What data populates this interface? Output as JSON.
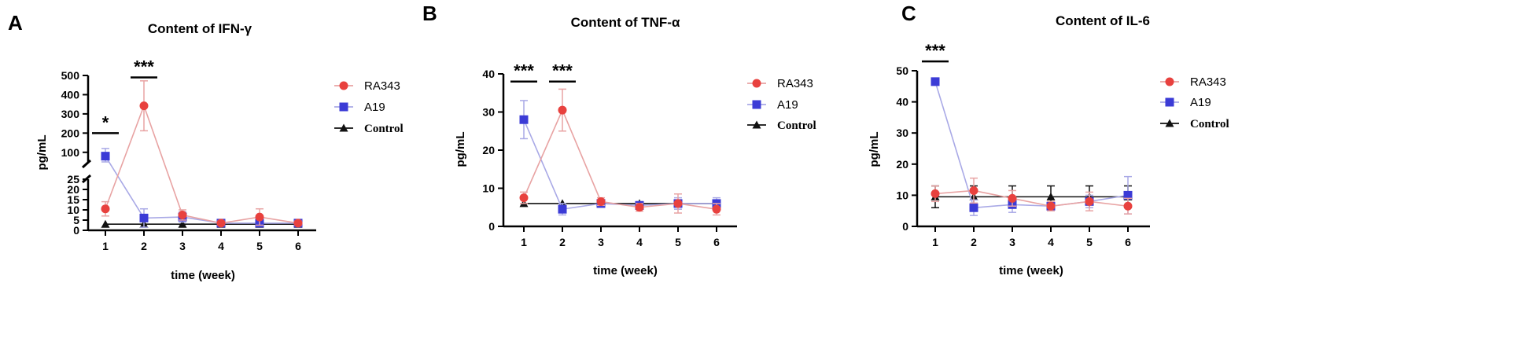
{
  "chart_data": [
    {
      "panel_letter": "A",
      "type": "line",
      "title": "Content of IFN-γ",
      "xlabel": "time (week)",
      "ylabel": "pg/mL",
      "x": [
        1,
        2,
        3,
        4,
        5,
        6
      ],
      "xticks": [
        "1",
        "2",
        "3",
        "4",
        "5",
        "6"
      ],
      "broken_axis": true,
      "ylim_lower": [
        0,
        25
      ],
      "ylim_upper": [
        50,
        500
      ],
      "yticks_lower": [
        "0",
        "5",
        "10",
        "15",
        "20",
        "25"
      ],
      "yticks_upper": [
        "100",
        "200",
        "300",
        "400",
        "500"
      ],
      "series": [
        {
          "name": "RA343",
          "marker": "circle",
          "color": "#e8413e",
          "line_color": "#e8a3a3",
          "values": [
            10.5,
            342,
            7.5,
            3.5,
            6.5,
            3.5
          ],
          "errors": [
            3.5,
            130,
            2.5,
            1,
            4,
            1
          ]
        },
        {
          "name": "A19",
          "marker": "square",
          "color": "#3b3bd6",
          "line_color": "#a9a9e6",
          "values": [
            80,
            6,
            6.5,
            3.5,
            3.5,
            3.5
          ],
          "errors": [
            40,
            4.5,
            2.5,
            1,
            1,
            1
          ]
        },
        {
          "name": "Control",
          "marker": "triangle",
          "color": "#111111",
          "line_color": "#111111",
          "values": [
            3,
            3,
            3,
            3,
            3,
            3
          ],
          "errors": [
            0,
            0,
            0,
            0,
            0,
            0
          ]
        }
      ],
      "significance": [
        {
          "label": "*",
          "x": 1,
          "y": 200
        },
        {
          "label": "***",
          "x": 2,
          "y": 490
        }
      ]
    },
    {
      "panel_letter": "B",
      "type": "line",
      "title": "Content of TNF-α",
      "xlabel": "time (week)",
      "ylabel": "pg/mL",
      "x": [
        1,
        2,
        3,
        4,
        5,
        6
      ],
      "xticks": [
        "1",
        "2",
        "3",
        "4",
        "5",
        "6"
      ],
      "ylim": [
        0,
        40
      ],
      "yticks": [
        "0",
        "10",
        "20",
        "30",
        "40"
      ],
      "series": [
        {
          "name": "RA343",
          "marker": "circle",
          "color": "#e8413e",
          "line_color": "#e8a3a3",
          "values": [
            7.5,
            30.5,
            6.5,
            5,
            6,
            4.5
          ],
          "errors": [
            1.5,
            5.5,
            1,
            1,
            2.5,
            1.5
          ]
        },
        {
          "name": "A19",
          "marker": "square",
          "color": "#3b3bd6",
          "line_color": "#a9a9e6",
          "values": [
            28,
            4.5,
            6,
            5.5,
            6,
            6
          ],
          "errors": [
            5,
            1.5,
            1,
            1,
            1.5,
            1.5
          ]
        },
        {
          "name": "Control",
          "marker": "triangle",
          "color": "#111111",
          "line_color": "#111111",
          "values": [
            6,
            6,
            6,
            6,
            6,
            6
          ],
          "errors": [
            0,
            0,
            0,
            0,
            0,
            0
          ]
        }
      ],
      "significance": [
        {
          "label": "***",
          "x": 1,
          "y": 38
        },
        {
          "label": "***",
          "x": 2,
          "y": 38
        }
      ]
    },
    {
      "panel_letter": "C",
      "type": "line",
      "title": "Content of IL-6",
      "xlabel": "time (week)",
      "ylabel": "pg/mL",
      "x": [
        1,
        2,
        3,
        4,
        5,
        6
      ],
      "xticks": [
        "1",
        "2",
        "3",
        "4",
        "5",
        "6"
      ],
      "ylim": [
        0,
        50
      ],
      "yticks": [
        "0",
        "10",
        "20",
        "30",
        "40",
        "50"
      ],
      "series": [
        {
          "name": "RA343",
          "marker": "circle",
          "color": "#e8413e",
          "line_color": "#e8a3a3",
          "values": [
            10.5,
            11.5,
            9,
            6.5,
            8,
            6.5
          ],
          "errors": [
            2.5,
            4,
            2.5,
            1.5,
            3,
            2.5
          ]
        },
        {
          "name": "A19",
          "marker": "square",
          "color": "#3b3bd6",
          "line_color": "#a9a9e6",
          "values": [
            46.5,
            6,
            7,
            6.5,
            8,
            10
          ],
          "errors": [
            0,
            2.5,
            2.5,
            1.5,
            2,
            6
          ]
        },
        {
          "name": "Control",
          "marker": "triangle",
          "color": "#111111",
          "line_color": "#111111",
          "values": [
            9.5,
            9.5,
            9.5,
            9.5,
            9.5,
            9.5
          ],
          "errors": [
            3.5,
            3.5,
            3.5,
            3.5,
            3.5,
            3.5
          ]
        }
      ],
      "significance": [
        {
          "label": "***",
          "x": 1,
          "y": 53
        }
      ]
    }
  ]
}
